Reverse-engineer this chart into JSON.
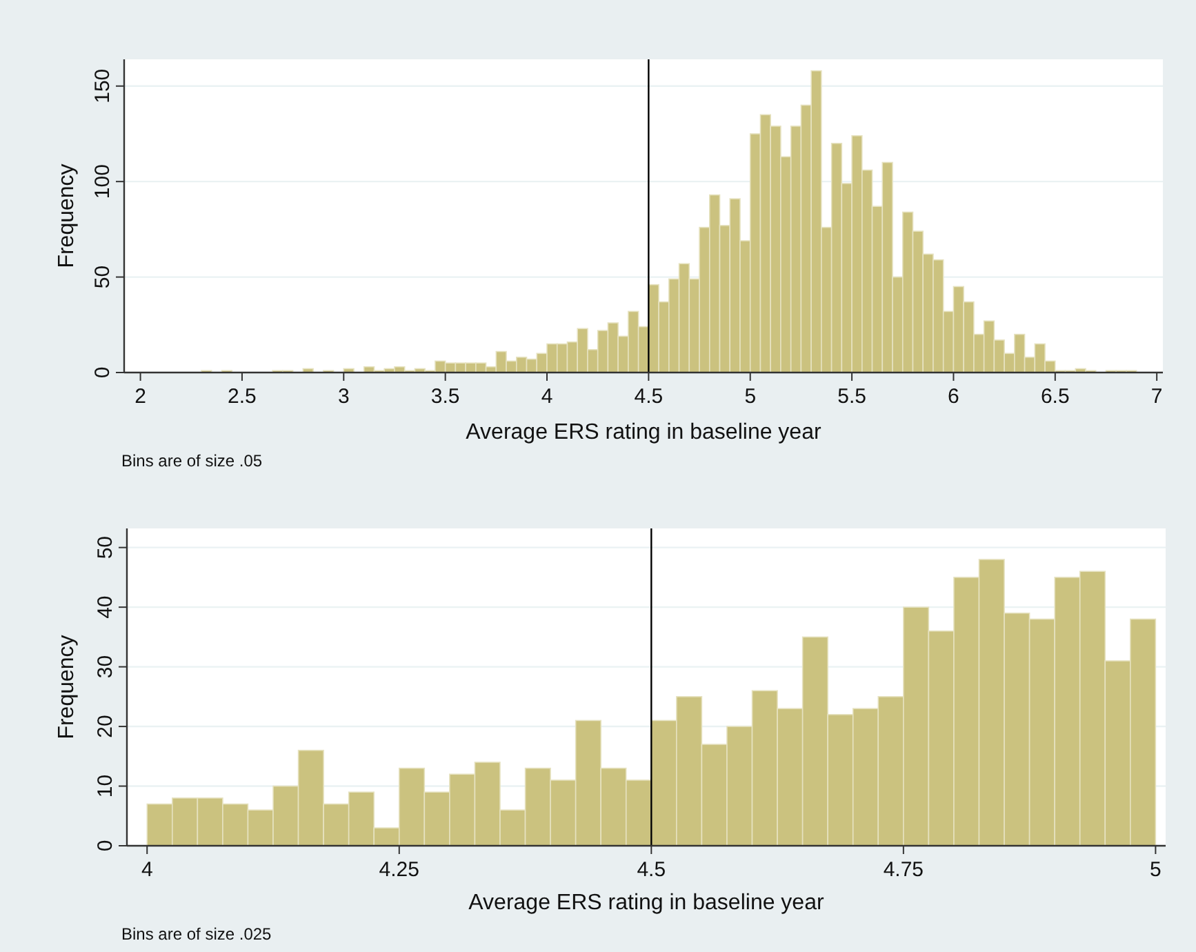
{
  "chart_data": [
    {
      "type": "histogram",
      "xlabel": "Average ERS rating in baseline year",
      "ylabel": "Frequency",
      "color": "#cbc27f",
      "bins": [
        2.3,
        2.35,
        2.4,
        2.45,
        2.5,
        2.55,
        2.6,
        2.65,
        2.7,
        2.75,
        2.8,
        2.85,
        2.9,
        2.95,
        3,
        3.05,
        3.1,
        3.15,
        3.2,
        3.25,
        3.3,
        3.35,
        3.4,
        3.45,
        3.5,
        3.55,
        3.6,
        3.65,
        3.7,
        3.75,
        3.8,
        3.85,
        3.9,
        3.95,
        4,
        4.05,
        4.1,
        4.15,
        4.2,
        4.25,
        4.3,
        4.35,
        4.4,
        4.45,
        4.5,
        4.55,
        4.6,
        4.65,
        4.7,
        4.75,
        4.8,
        4.85,
        4.9,
        4.95,
        5,
        5.05,
        5.1,
        5.15,
        5.2,
        5.25,
        5.3,
        5.35,
        5.4,
        5.45,
        5.5,
        5.55,
        5.6,
        5.65,
        5.7,
        5.75,
        5.8,
        5.85,
        5.9,
        5.95,
        6,
        6.05,
        6.1,
        6.15,
        6.2,
        6.25,
        6.3,
        6.35,
        6.4,
        6.45,
        6.5,
        6.55,
        6.6,
        6.65,
        6.7,
        6.75,
        6.8,
        6.85,
        6.9
      ],
      "values": [
        1,
        0,
        1,
        0,
        0,
        0,
        0,
        1,
        1,
        0,
        2,
        0,
        1,
        0,
        2,
        0,
        3,
        1,
        2,
        3,
        1,
        2,
        1,
        6,
        5,
        5,
        5,
        5,
        3,
        11,
        6,
        8,
        7,
        10,
        15,
        15,
        16,
        23,
        12,
        22,
        26,
        19,
        32,
        24,
        46,
        37,
        49,
        57,
        49,
        76,
        93,
        77,
        91,
        69,
        125,
        135,
        129,
        113,
        129,
        140,
        158,
        76,
        120,
        99,
        124,
        106,
        87,
        110,
        50,
        84,
        74,
        62,
        59,
        32,
        45,
        37,
        20,
        27,
        17,
        10,
        20,
        8,
        15,
        6,
        1,
        1,
        2,
        1,
        0,
        1,
        1,
        1
      ],
      "xlim": [
        1.92,
        7.03
      ],
      "xticks": [
        2,
        2.5,
        3,
        3.5,
        4,
        4.5,
        5,
        5.5,
        6,
        6.5,
        7
      ],
      "ylim": [
        0,
        164
      ],
      "yticks": [
        0,
        50,
        100,
        150
      ],
      "grid": "y",
      "ref_lines": [
        {
          "axis": "x",
          "value": 4.5,
          "color": "#000000"
        }
      ],
      "annotations": [
        "Bins are of size .05"
      ]
    },
    {
      "type": "histogram",
      "xlabel": "Average ERS rating in baseline year",
      "ylabel": "Frequency",
      "color": "#cbc27f",
      "bins": [
        4,
        4.025,
        4.05,
        4.075,
        4.1,
        4.125,
        4.15,
        4.175,
        4.2,
        4.225,
        4.25,
        4.275,
        4.3,
        4.325,
        4.35,
        4.375,
        4.4,
        4.425,
        4.45,
        4.475,
        4.5,
        4.525,
        4.55,
        4.575,
        4.6,
        4.625,
        4.65,
        4.675,
        4.7,
        4.725,
        4.75,
        4.775,
        4.8,
        4.825,
        4.85,
        4.875,
        4.9,
        4.925,
        4.95,
        4.975,
        5
      ],
      "values": [
        7,
        8,
        8,
        7,
        6,
        10,
        16,
        7,
        9,
        3,
        13,
        9,
        12,
        14,
        6,
        13,
        11,
        21,
        13,
        11,
        21,
        25,
        17,
        20,
        26,
        23,
        35,
        22,
        23,
        25,
        40,
        36,
        45,
        48,
        39,
        38,
        45,
        46,
        31,
        38
      ],
      "xlim": [
        3.98,
        5.01
      ],
      "xticks": [
        4,
        4.25,
        4.5,
        4.75,
        5
      ],
      "ylim": [
        0,
        53.2
      ],
      "yticks": [
        0,
        10,
        20,
        30,
        40,
        50
      ],
      "grid": "y",
      "ref_lines": [
        {
          "axis": "x",
          "value": 4.5,
          "color": "#000000"
        }
      ],
      "annotations": [
        "Bins are of size .025"
      ]
    }
  ]
}
